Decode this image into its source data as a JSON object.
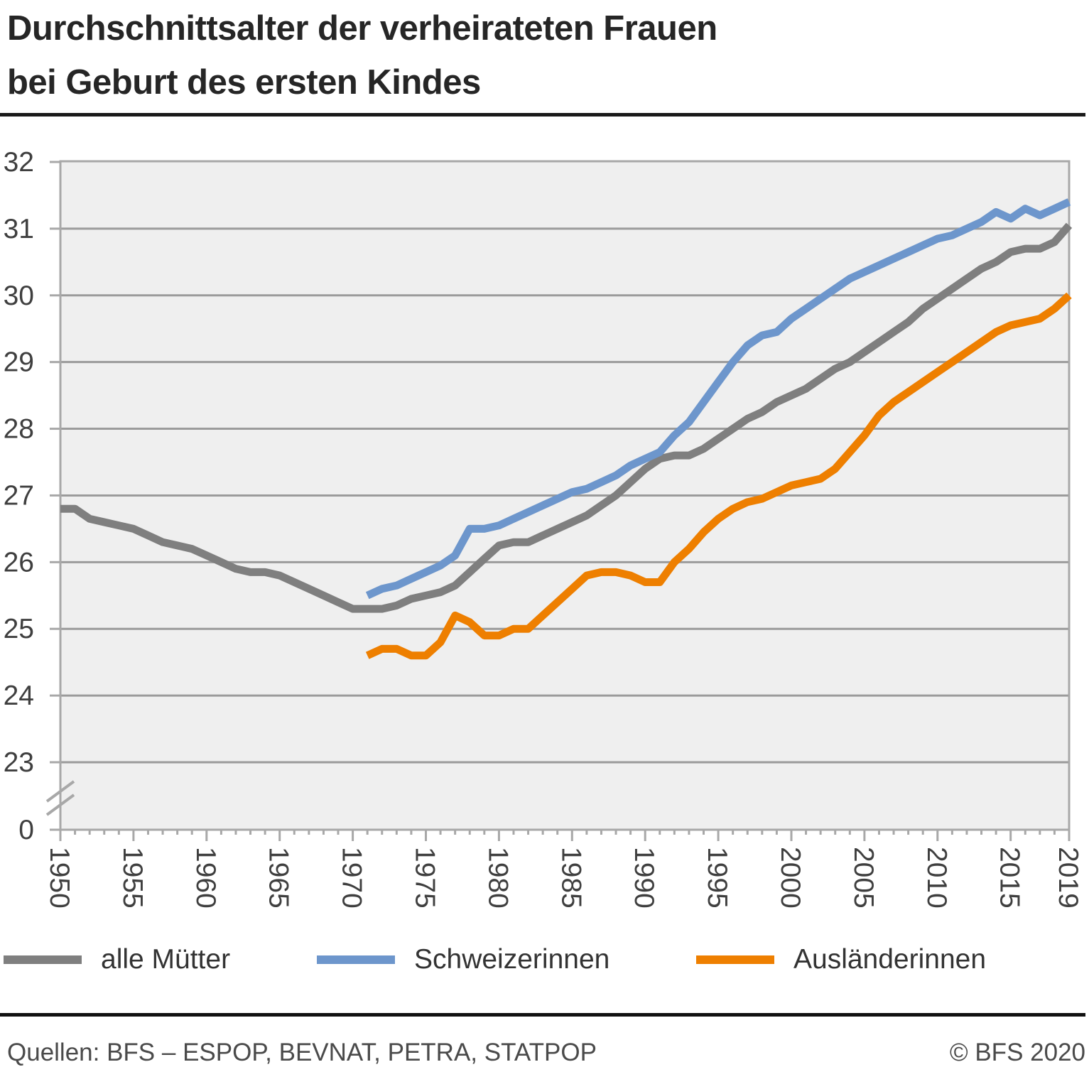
{
  "title": {
    "line1": "Durchschnittsalter der verheirateten Frauen",
    "line2": "bei Geburt des ersten Kindes"
  },
  "legend": {
    "items": [
      {
        "label": "alle Mütter",
        "color": "#7f7f7f"
      },
      {
        "label": "Schweizerinnen",
        "color": "#6d96cc"
      },
      {
        "label": "Ausländerinnen",
        "color": "#ee7f00"
      }
    ]
  },
  "footer": {
    "sources": "Quellen: BFS – ESPOP, BEVNAT, PETRA, STATPOP",
    "copyright": "© BFS 2020"
  },
  "colors": {
    "plot_bg": "#efefef",
    "grid": "#9b9b9b",
    "frame": "#a8a8a8",
    "axis_text": "#3f3f3f",
    "title_text": "#262626",
    "rule": "#1a1a1a",
    "gray_line": "#7f7f7f",
    "blue_line": "#6d96cc",
    "orange_line": "#ee7f00"
  },
  "chart_data": {
    "type": "line",
    "title": "Durchschnittsalter der verheirateten Frauen bei Geburt des ersten Kindes",
    "xlabel": "",
    "ylabel": "",
    "x_axis": {
      "min": 1950,
      "max": 2019,
      "major_ticks": [
        1950,
        1955,
        1960,
        1965,
        1970,
        1975,
        1980,
        1985,
        1990,
        1995,
        2000,
        2005,
        2010,
        2015,
        2019
      ],
      "minor_tick_step": 1,
      "label_rotation_deg": 90
    },
    "y_axis": {
      "unit_min": 23,
      "unit_max": 32,
      "ticks": [
        32,
        31,
        30,
        29,
        28,
        27,
        26,
        25,
        24,
        23
      ],
      "zero_label": "0",
      "axis_break_between": [
        0,
        23
      ]
    },
    "grid": "horizontal",
    "legend_position": "bottom",
    "series": [
      {
        "name": "alle Mütter",
        "color": "#7f7f7f",
        "start_year": 1950,
        "values": [
          26.8,
          26.8,
          26.65,
          26.6,
          26.55,
          26.5,
          26.4,
          26.3,
          26.25,
          26.2,
          26.1,
          26.0,
          25.9,
          25.85,
          25.85,
          25.8,
          25.7,
          25.6,
          25.5,
          25.4,
          25.3,
          25.3,
          25.3,
          25.35,
          25.45,
          25.5,
          25.55,
          25.65,
          25.85,
          26.05,
          26.25,
          26.3,
          26.3,
          26.4,
          26.5,
          26.6,
          26.7,
          26.85,
          27.0,
          27.2,
          27.4,
          27.55,
          27.6,
          27.6,
          27.7,
          27.85,
          28.0,
          28.15,
          28.25,
          28.4,
          28.5,
          28.6,
          28.75,
          28.9,
          29.0,
          29.15,
          29.3,
          29.45,
          29.6,
          29.8,
          29.95,
          30.1,
          30.25,
          30.4,
          30.5,
          30.65,
          30.7,
          30.7,
          30.8,
          31.05
        ]
      },
      {
        "name": "Schweizerinnen",
        "color": "#6d96cc",
        "start_year": 1971,
        "values": [
          25.5,
          25.6,
          25.65,
          25.75,
          25.85,
          25.95,
          26.1,
          26.5,
          26.5,
          26.55,
          26.65,
          26.75,
          26.85,
          26.95,
          27.05,
          27.1,
          27.2,
          27.3,
          27.45,
          27.55,
          27.65,
          27.9,
          28.1,
          28.4,
          28.7,
          29.0,
          29.25,
          29.4,
          29.45,
          29.65,
          29.8,
          29.95,
          30.1,
          30.25,
          30.35,
          30.45,
          30.55,
          30.65,
          30.75,
          30.85,
          30.9,
          31.0,
          31.1,
          31.25,
          31.15,
          31.3,
          31.2,
          31.3,
          31.4
        ]
      },
      {
        "name": "Ausländerinnen",
        "color": "#ee7f00",
        "start_year": 1971,
        "values": [
          24.6,
          24.7,
          24.7,
          24.6,
          24.6,
          24.8,
          25.2,
          25.1,
          24.9,
          24.9,
          25.0,
          25.0,
          25.2,
          25.4,
          25.6,
          25.8,
          25.85,
          25.85,
          25.8,
          25.7,
          25.7,
          26.0,
          26.2,
          26.45,
          26.65,
          26.8,
          26.9,
          26.95,
          27.05,
          27.15,
          27.2,
          27.25,
          27.4,
          27.65,
          27.9,
          28.2,
          28.4,
          28.55,
          28.7,
          28.85,
          29.0,
          29.15,
          29.3,
          29.45,
          29.55,
          29.6,
          29.65,
          29.8,
          30.0
        ]
      }
    ]
  }
}
